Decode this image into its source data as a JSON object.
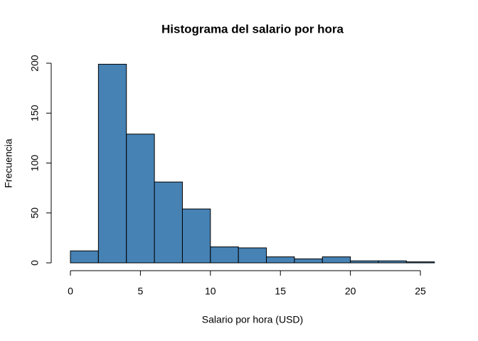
{
  "chart_data": {
    "type": "histogram",
    "title": "Histograma del salario por hora",
    "x_label": "Salario por hora (USD)",
    "y_label": "Frecuencia",
    "bins": [
      0,
      2,
      4,
      6,
      8,
      10,
      12,
      14,
      16,
      18,
      20,
      22,
      24,
      26
    ],
    "values": [
      12,
      199,
      129,
      81,
      54,
      16,
      15,
      6,
      4,
      6,
      2,
      2,
      1
    ],
    "color": "#4682b4",
    "xlim": [
      0,
      26
    ],
    "xticks": [
      0,
      5,
      10,
      15,
      20,
      25
    ],
    "ylim": [
      0,
      200
    ],
    "yticks": [
      0,
      50,
      100,
      150,
      200
    ]
  }
}
